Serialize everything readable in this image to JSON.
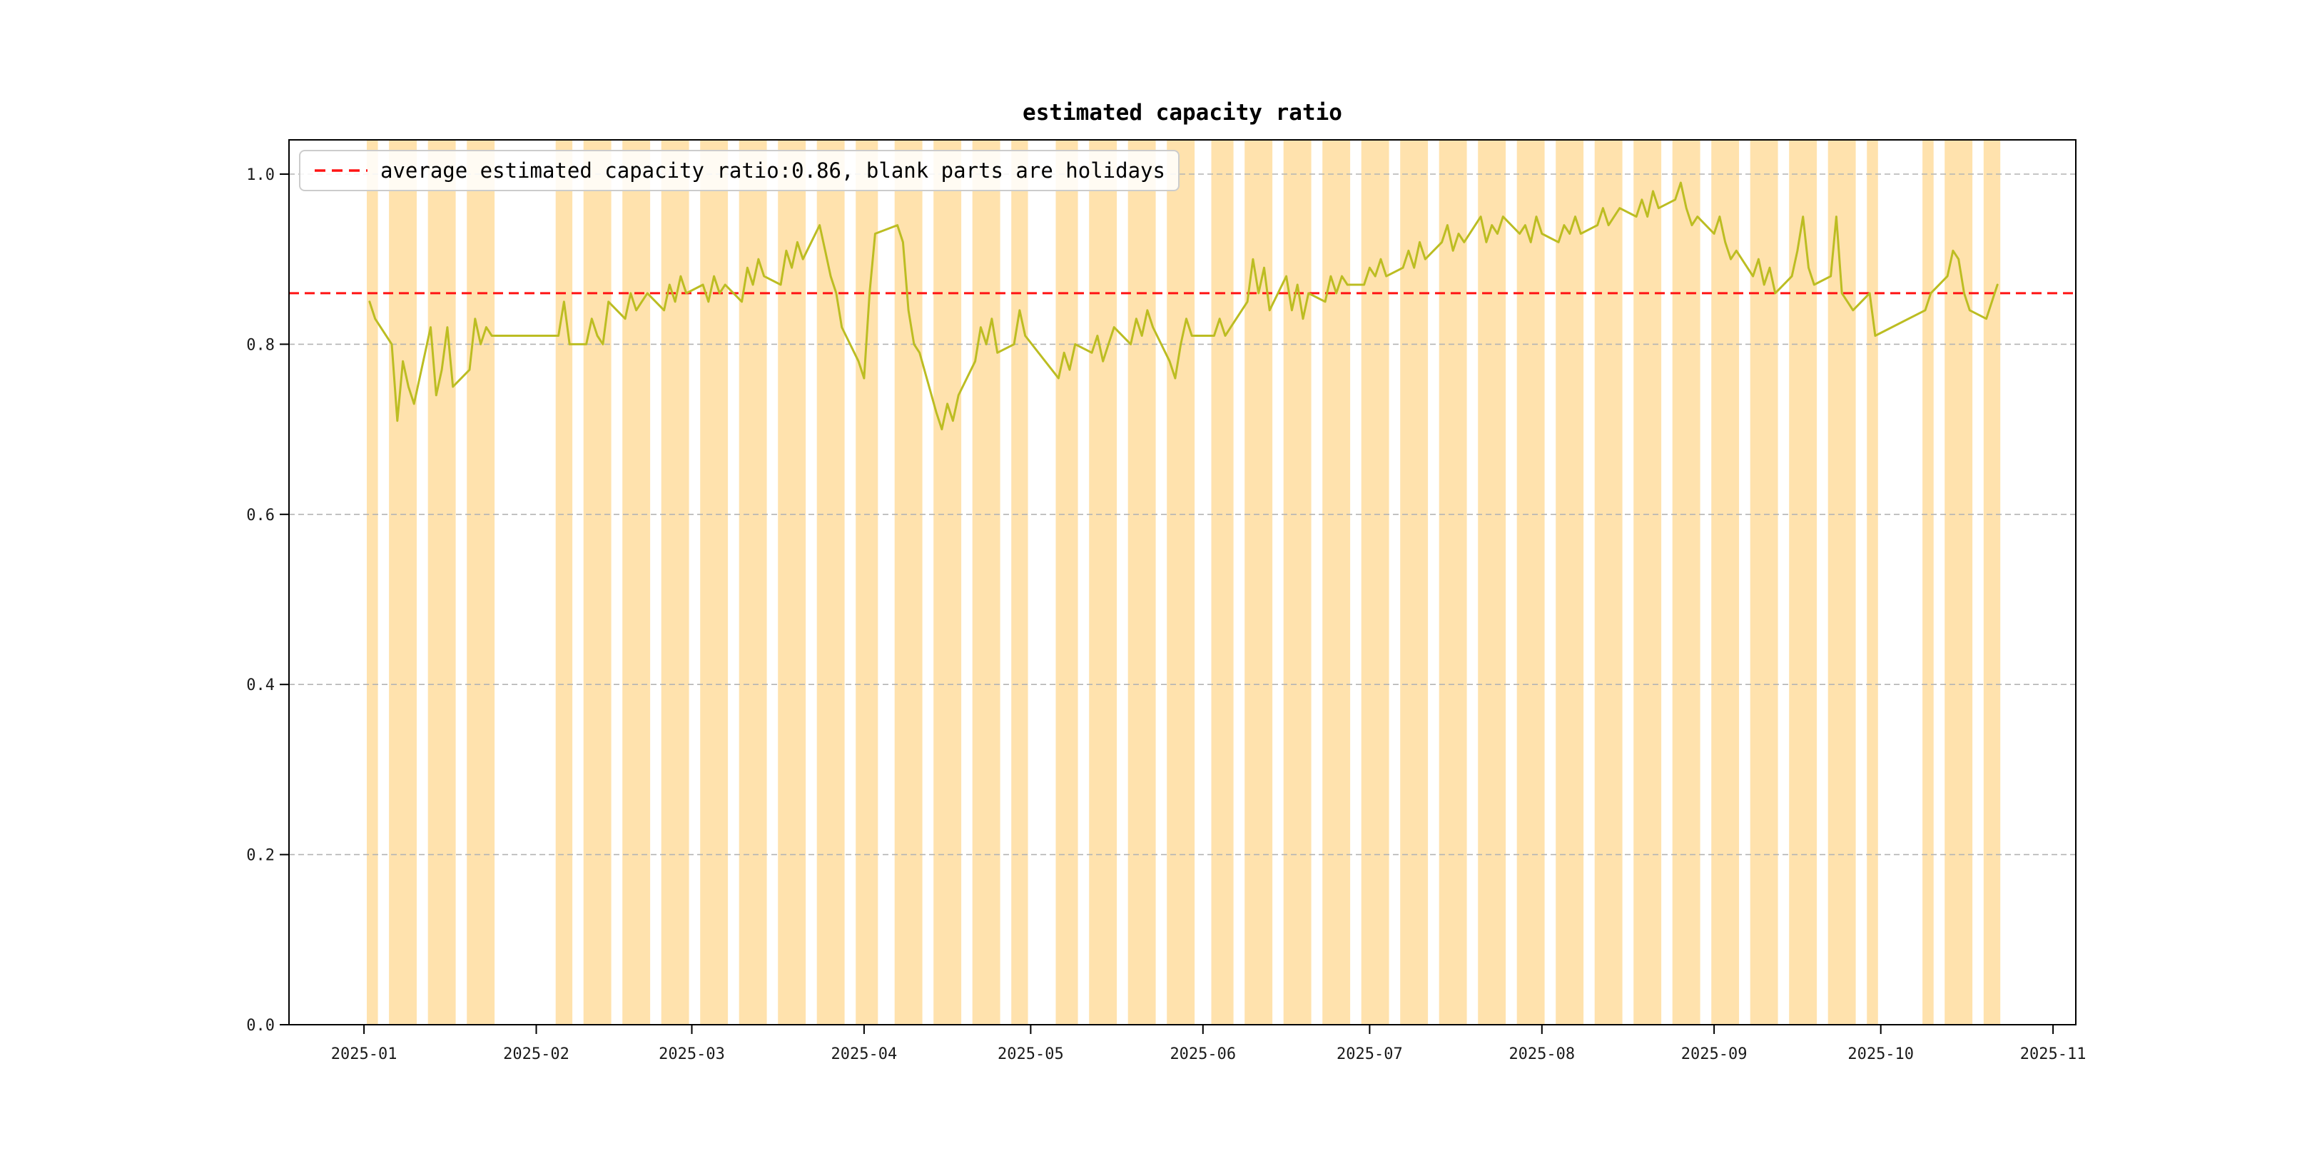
{
  "chart_data": {
    "type": "line",
    "title": "estimated capacity ratio",
    "legend": {
      "label": "average estimated capacity ratio:0.86, blank parts are holidays",
      "position": "upper-left",
      "marker": "red-dashed-line"
    },
    "average_line": {
      "value": 0.86,
      "style": "dashed"
    },
    "colors": {
      "line": "#bcbd22",
      "workday_band": "#ffa500",
      "workday_band_opacity": 0.32,
      "grid": "#b4b4b4",
      "axis": "#000000",
      "average": "#ff1414",
      "tick_text": "#1a1a1a"
    },
    "grid": {
      "visible": true,
      "style": "dashed"
    },
    "x_axis": {
      "epoch": "2025-01-01",
      "domain_days": [
        -13.5,
        308.1
      ],
      "tick_day_offsets": [
        0,
        31,
        59,
        90,
        120,
        151,
        181,
        212,
        243,
        273,
        304
      ],
      "tick_labels": [
        "2025-01",
        "2025-02",
        "2025-03",
        "2025-04",
        "2025-05",
        "2025-06",
        "2025-07",
        "2025-08",
        "2025-09",
        "2025-10",
        "2025-11"
      ]
    },
    "y_axis": {
      "domain": [
        0,
        1.0403
      ],
      "tick_values": [
        0.0,
        0.2,
        0.4,
        0.6,
        0.8,
        1.0
      ],
      "tick_labels": [
        "0.0",
        "0.2",
        "0.4",
        "0.6",
        "0.8",
        "1.0"
      ]
    },
    "series": [
      {
        "name": "estimated capacity ratio",
        "note": "orange bands span workday runs; blank parts are holidays",
        "periods": [
          {
            "start": "2025-01-02",
            "values": [
              0.85,
              0.83
            ]
          },
          {
            "start": "2025-01-06",
            "values": [
              0.8,
              0.71,
              0.78,
              0.75,
              0.73
            ]
          },
          {
            "start": "2025-01-13",
            "values": [
              0.82,
              0.74,
              0.77,
              0.82,
              0.75
            ]
          },
          {
            "start": "2025-01-20",
            "values": [
              0.77,
              0.83,
              0.8,
              0.82,
              0.81
            ]
          },
          {
            "start": "2025-02-05",
            "values": [
              0.81,
              0.85,
              0.8
            ]
          },
          {
            "start": "2025-02-10",
            "values": [
              0.8,
              0.83,
              0.81,
              0.8,
              0.85
            ]
          },
          {
            "start": "2025-02-17",
            "values": [
              0.83,
              0.86,
              0.84,
              0.85,
              0.86
            ]
          },
          {
            "start": "2025-02-24",
            "values": [
              0.84,
              0.87,
              0.85,
              0.88,
              0.86
            ]
          },
          {
            "start": "2025-03-03",
            "values": [
              0.87,
              0.85,
              0.88,
              0.86,
              0.87
            ]
          },
          {
            "start": "2025-03-10",
            "values": [
              0.85,
              0.89,
              0.87,
              0.9,
              0.88
            ]
          },
          {
            "start": "2025-03-17",
            "values": [
              0.87,
              0.91,
              0.89,
              0.92,
              0.9
            ]
          },
          {
            "start": "2025-03-24",
            "values": [
              0.94,
              0.91,
              0.88,
              0.86,
              0.82
            ]
          },
          {
            "start": "2025-03-31",
            "values": [
              0.78,
              0.76,
              0.86,
              0.93
            ]
          },
          {
            "start": "2025-04-07",
            "values": [
              0.94,
              0.92,
              0.84,
              0.8,
              0.79
            ]
          },
          {
            "start": "2025-04-14",
            "values": [
              0.72,
              0.7,
              0.73,
              0.71,
              0.74
            ]
          },
          {
            "start": "2025-04-21",
            "values": [
              0.78,
              0.82,
              0.8,
              0.83,
              0.79
            ]
          },
          {
            "start": "2025-04-28",
            "values": [
              0.8,
              0.84,
              0.81
            ]
          },
          {
            "start": "2025-05-06",
            "values": [
              0.76,
              0.79,
              0.77,
              0.8
            ]
          },
          {
            "start": "2025-05-12",
            "values": [
              0.79,
              0.81,
              0.78,
              0.8,
              0.82
            ]
          },
          {
            "start": "2025-05-19",
            "values": [
              0.8,
              0.83,
              0.81,
              0.84,
              0.82
            ]
          },
          {
            "start": "2025-05-26",
            "values": [
              0.78,
              0.76,
              0.8,
              0.83,
              0.81
            ]
          },
          {
            "start": "2025-06-03",
            "values": [
              0.81,
              0.83,
              0.81,
              0.82
            ]
          },
          {
            "start": "2025-06-09",
            "values": [
              0.85,
              0.9,
              0.86,
              0.89,
              0.84
            ]
          },
          {
            "start": "2025-06-16",
            "values": [
              0.88,
              0.84,
              0.87,
              0.83,
              0.86
            ]
          },
          {
            "start": "2025-06-23",
            "values": [
              0.85,
              0.88,
              0.86,
              0.88,
              0.87
            ]
          },
          {
            "start": "2025-06-30",
            "values": [
              0.87,
              0.89,
              0.88,
              0.9,
              0.88
            ]
          },
          {
            "start": "2025-07-07",
            "values": [
              0.89,
              0.91,
              0.89,
              0.92,
              0.9
            ]
          },
          {
            "start": "2025-07-14",
            "values": [
              0.92,
              0.94,
              0.91,
              0.93,
              0.92
            ]
          },
          {
            "start": "2025-07-21",
            "values": [
              0.95,
              0.92,
              0.94,
              0.93,
              0.95
            ]
          },
          {
            "start": "2025-07-28",
            "values": [
              0.93,
              0.94,
              0.92,
              0.95,
              0.93
            ]
          },
          {
            "start": "2025-08-04",
            "values": [
              0.92,
              0.94,
              0.93,
              0.95,
              0.93
            ]
          },
          {
            "start": "2025-08-11",
            "values": [
              0.94,
              0.96,
              0.94,
              0.95,
              0.96
            ]
          },
          {
            "start": "2025-08-18",
            "values": [
              0.95,
              0.97,
              0.95,
              0.98,
              0.96
            ]
          },
          {
            "start": "2025-08-25",
            "values": [
              0.97,
              0.99,
              0.96,
              0.94,
              0.95
            ]
          },
          {
            "start": "2025-09-01",
            "values": [
              0.93,
              0.95,
              0.92,
              0.9,
              0.91
            ]
          },
          {
            "start": "2025-09-08",
            "values": [
              0.88,
              0.9,
              0.87,
              0.89,
              0.86
            ]
          },
          {
            "start": "2025-09-15",
            "values": [
              0.88,
              0.91,
              0.95,
              0.89,
              0.87
            ]
          },
          {
            "start": "2025-09-22",
            "values": [
              0.88,
              0.95,
              0.86,
              0.85,
              0.84
            ]
          },
          {
            "start": "2025-09-29",
            "values": [
              0.86,
              0.81
            ]
          },
          {
            "start": "2025-10-09",
            "values": [
              0.84,
              0.86
            ]
          },
          {
            "start": "2025-10-13",
            "values": [
              0.88,
              0.91,
              0.9,
              0.86,
              0.84
            ]
          },
          {
            "start": "2025-10-20",
            "values": [
              0.83,
              0.85,
              0.87
            ]
          }
        ]
      }
    ]
  }
}
